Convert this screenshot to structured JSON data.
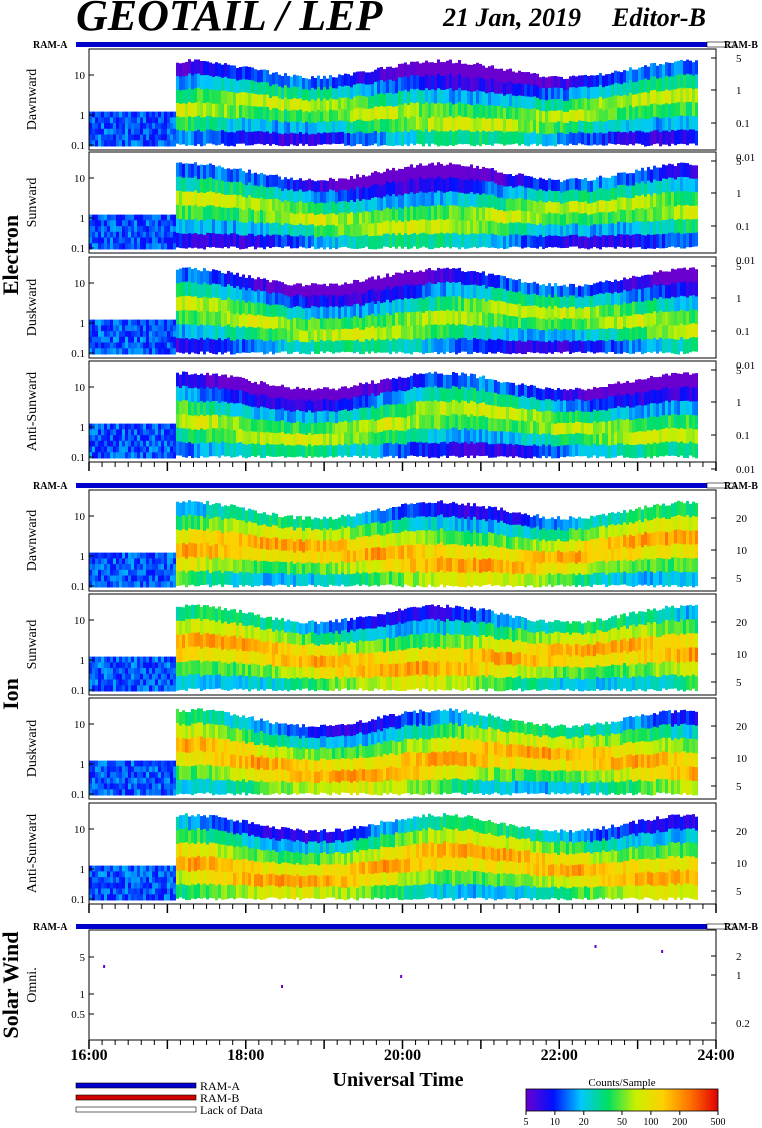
{
  "header": {
    "title": "GEOTAIL / LEP",
    "date": "21 Jan, 2019",
    "editor": "Editor-B"
  },
  "bar_labels": {
    "left": "RAM-A",
    "right": "RAM-B"
  },
  "chart_data": {
    "type": "heatmap",
    "xlabel": "Universal Time",
    "x_ticks": [
      "16:00",
      "18:00",
      "20:00",
      "22:00",
      "24:00"
    ],
    "xlim": [
      "16:00",
      "24:00"
    ],
    "groups": [
      {
        "name": "Electron",
        "panels": [
          {
            "name": "Dawnward",
            "left_ticks": [
              "10",
              "1",
              "0.1"
            ],
            "right_ticks": [
              "5",
              "1",
              "0.1",
              "0.01"
            ]
          },
          {
            "name": "Sunward",
            "left_ticks": [
              "10",
              "1",
              "0.1"
            ],
            "right_ticks": [
              "5",
              "1",
              "0.1",
              "0.01"
            ]
          },
          {
            "name": "Duskward",
            "left_ticks": [
              "10",
              "1",
              "0.1"
            ],
            "right_ticks": [
              "5",
              "1",
              "0.1",
              "0.01"
            ]
          },
          {
            "name": "Anti-Sunward",
            "left_ticks": [
              "10",
              "1",
              "0.1"
            ],
            "right_ticks": [
              "5",
              "1",
              "0.1",
              "0.01"
            ]
          }
        ]
      },
      {
        "name": "Ion",
        "panels": [
          {
            "name": "Dawnward",
            "left_ticks": [
              "10",
              "1",
              "0.1"
            ],
            "right_ticks": [
              "20",
              "10",
              "5"
            ]
          },
          {
            "name": "Sunward",
            "left_ticks": [
              "10",
              "1",
              "0.1"
            ],
            "right_ticks": [
              "20",
              "10",
              "5"
            ]
          },
          {
            "name": "Duskward",
            "left_ticks": [
              "10",
              "1",
              "0.1"
            ],
            "right_ticks": [
              "20",
              "10",
              "5"
            ]
          },
          {
            "name": "Anti-Sunward",
            "left_ticks": [
              "10",
              "1",
              "0.1"
            ],
            "right_ticks": [
              "20",
              "10",
              "5"
            ]
          }
        ]
      },
      {
        "name": "Solar Wind",
        "panels": [
          {
            "name": "Omni.",
            "left_ticks": [
              "5",
              "1",
              "0.5"
            ],
            "right_ticks": [
              "2",
              "1",
              "0.2"
            ]
          }
        ]
      }
    ],
    "colorbar": {
      "label": "Counts/Sample",
      "ticks": [
        "5",
        "10",
        "20",
        "50",
        "100",
        "200",
        "500"
      ],
      "colors": [
        "#6a00d0",
        "#0010ff",
        "#00c8ff",
        "#00e060",
        "#c8f000",
        "#ffd000",
        "#ff7000",
        "#e00000"
      ]
    },
    "legend": [
      {
        "label": "RAM-A",
        "color": "#0000cc"
      },
      {
        "label": "RAM-B",
        "color": "#d00000"
      },
      {
        "label": "Lack of Data",
        "color": "#ffffff"
      }
    ]
  }
}
